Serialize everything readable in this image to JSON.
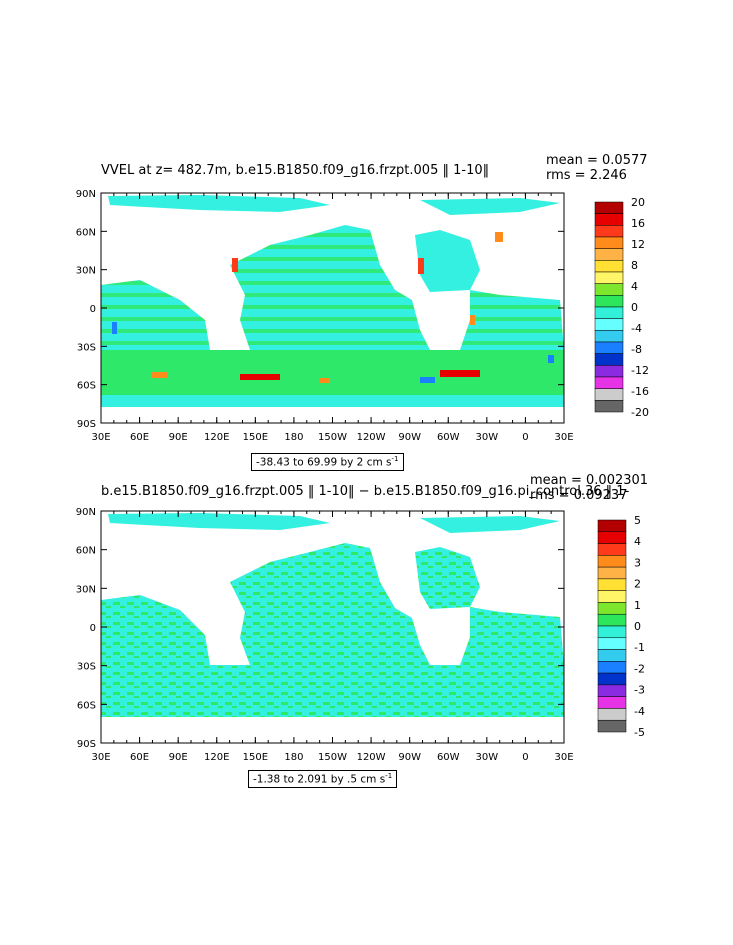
{
  "panel1": {
    "title": "VVEL at z= 482.7m, b.e15.B1850.f09_g16.frzpt.005 ‖ 1-10‖",
    "mean": "mean = 0.0577",
    "rms": "rms = 2.246",
    "range": "-38.43 to 69.99 by 2 cm s",
    "range_sup": "-1",
    "colorbar": {
      "labels": [
        "20",
        "16",
        "12",
        "8",
        "4",
        "0",
        "-4",
        "-8",
        "-12",
        "-16",
        "-20"
      ],
      "colors": [
        "#b30000",
        "#e60000",
        "#ff3a1a",
        "#ff8c1a",
        "#ffb347",
        "#ffe033",
        "#fff566",
        "#7fe62e",
        "#2ee65c",
        "#33f0d9",
        "#66ffff",
        "#33ccee",
        "#1a80ff",
        "#0033cc",
        "#8a2be2",
        "#e633e6",
        "#cccccc",
        "#666666"
      ]
    }
  },
  "panel2": {
    "title": "b.e15.B1850.f09_g16.frzpt.005 ‖ 1-10‖ − b.e15.B1850.f09_g16.pi_control.36 ‖ 1-",
    "mean": "mean = 0.002301",
    "rms": "rms = 0.09237",
    "range": "-1.38 to 2.091 by .5 cm s",
    "range_sup": "-1",
    "colorbar": {
      "labels": [
        "5",
        "4",
        "3",
        "2",
        "1",
        "0",
        "-1",
        "-2",
        "-3",
        "-4",
        "-5"
      ],
      "colors": [
        "#b30000",
        "#e60000",
        "#ff3a1a",
        "#ff8c1a",
        "#ffb347",
        "#ffe033",
        "#fff566",
        "#7fe62e",
        "#2ee65c",
        "#33f0d9",
        "#66ffff",
        "#33ccee",
        "#1a80ff",
        "#0033cc",
        "#8a2be2",
        "#e633e6",
        "#cccccc",
        "#666666"
      ]
    }
  },
  "lat_labels": [
    "90N",
    "60N",
    "30N",
    "0",
    "30S",
    "60S",
    "90S"
  ],
  "lon_labels": [
    "30E",
    "60E",
    "90E",
    "120E",
    "150E",
    "180",
    "150W",
    "120W",
    "90W",
    "60W",
    "30W",
    "0",
    "30E"
  ],
  "colors": {
    "ocean": "#33f0e0",
    "ocean_alt": "#2ee86a",
    "land": "#ffffff"
  }
}
